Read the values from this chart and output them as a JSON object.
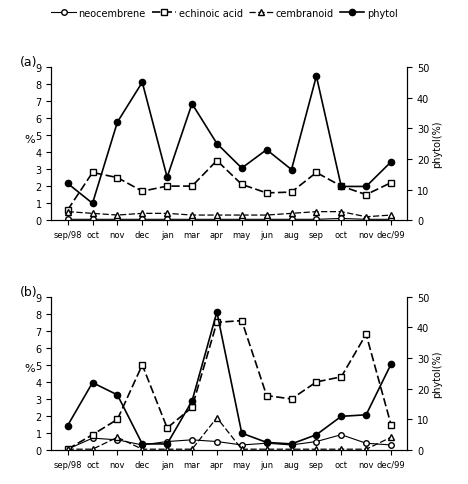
{
  "x_labels": [
    "sep/98",
    "oct",
    "nov",
    "dec",
    "jan",
    "mar",
    "apr",
    "may",
    "jun",
    "aug",
    "sep",
    "oct",
    "nov",
    "dec/99"
  ],
  "a_neocembrene": [
    0.05,
    0.05,
    0.05,
    0.05,
    0.05,
    0.05,
    0.05,
    0.05,
    0.05,
    0.05,
    0.05,
    0.1,
    0.05,
    0.05
  ],
  "a_echinoic_acid": [
    0.6,
    2.8,
    2.5,
    1.7,
    2.0,
    2.0,
    3.5,
    2.1,
    1.6,
    1.65,
    2.8,
    2.0,
    1.5,
    2.2
  ],
  "a_cembranoid": [
    0.5,
    0.4,
    0.3,
    0.4,
    0.4,
    0.3,
    0.3,
    0.3,
    0.3,
    0.4,
    0.5,
    0.5,
    0.2,
    0.3
  ],
  "a_phytol": [
    12.0,
    5.5,
    32.0,
    45.0,
    14.0,
    38.0,
    25.0,
    17.0,
    23.0,
    16.5,
    47.0,
    11.0,
    11.0,
    19.0
  ],
  "b_neocembrene": [
    0.05,
    0.7,
    0.6,
    0.3,
    0.5,
    0.6,
    0.5,
    0.3,
    0.4,
    0.3,
    0.5,
    0.9,
    0.4,
    0.3
  ],
  "b_echinoic_acid": [
    0.05,
    0.9,
    1.8,
    5.0,
    1.3,
    2.5,
    7.5,
    7.6,
    3.2,
    3.0,
    4.0,
    4.3,
    6.8,
    1.5
  ],
  "b_cembranoid": [
    0.05,
    0.05,
    0.75,
    0.05,
    0.05,
    0.05,
    1.9,
    0.05,
    0.05,
    0.05,
    0.05,
    0.05,
    0.05,
    0.75
  ],
  "b_phytol": [
    8.0,
    22.0,
    18.0,
    2.0,
    2.0,
    16.0,
    45.0,
    5.5,
    2.5,
    2.0,
    5.0,
    11.0,
    11.5,
    28.0
  ],
  "ylim_left": [
    0,
    9
  ],
  "ylim_right": [
    0,
    50
  ],
  "ylabel_left": "%",
  "ylabel_right": "phytol(%)",
  "legend_labels": [
    "neocembrene",
    "echinoic acid",
    "cembranoid",
    "phytol"
  ],
  "panel_a_label": "(a)",
  "panel_b_label": "(b)"
}
